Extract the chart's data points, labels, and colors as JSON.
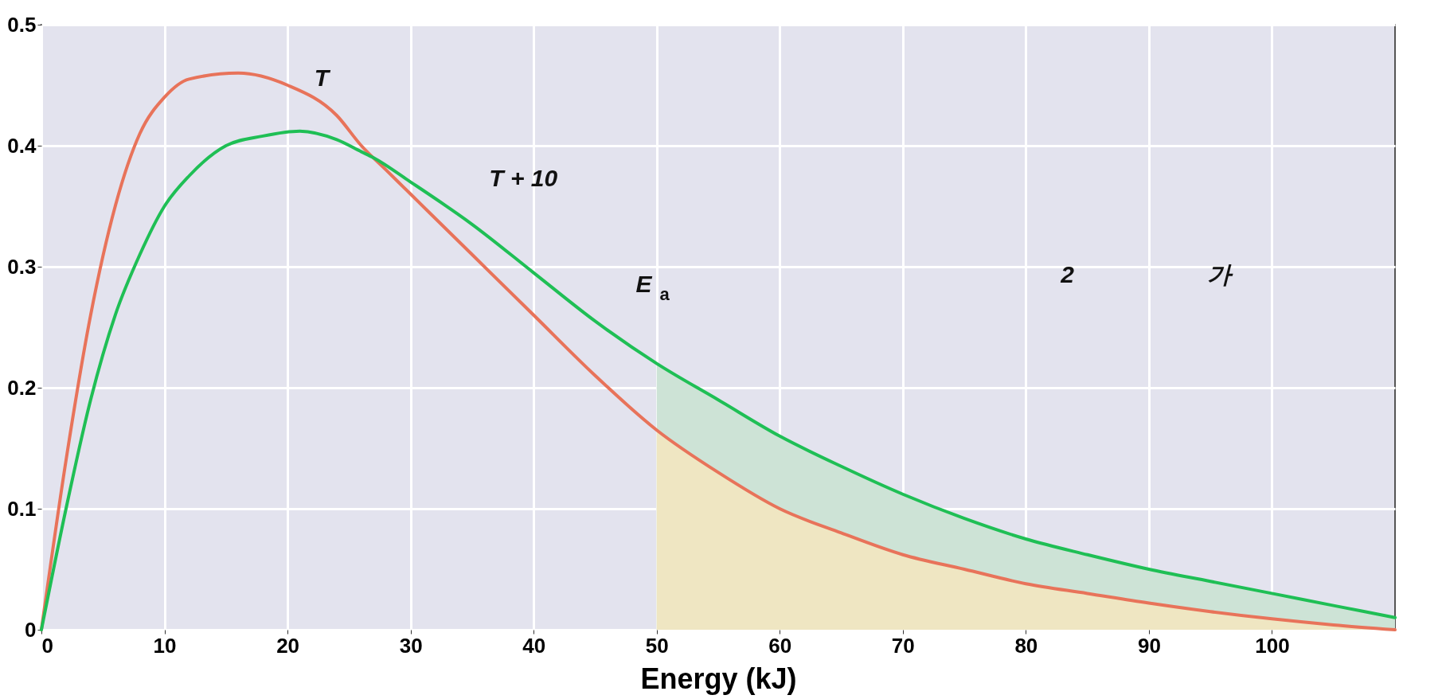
{
  "chart_data": {
    "type": "line",
    "xlabel": "Energy (kJ)",
    "xlim": [
      0,
      110
    ],
    "xticks": [
      0,
      10,
      20,
      30,
      40,
      50,
      60,
      70,
      80,
      90,
      100
    ],
    "ylim": [
      0,
      0.5
    ],
    "yticks": [
      0,
      0.1,
      0.2,
      0.3,
      0.4,
      0.5
    ],
    "grid": true,
    "marker": "none",
    "line_style": "solid",
    "series": [
      {
        "type": "area",
        "color": "#cde3d6",
        "x": [
          50,
          55,
          60,
          65,
          70,
          75,
          80,
          85,
          90,
          95,
          100,
          105,
          110
        ],
        "values": [
          0.22,
          0.19,
          0.16,
          0.135,
          0.112,
          0.092,
          0.075,
          0.062,
          0.05,
          0.04,
          0.03,
          0.02,
          0.01
        ]
      },
      {
        "type": "area",
        "color": "#efe6c2",
        "x": [
          50,
          55,
          60,
          65,
          70,
          75,
          80,
          85,
          90,
          95,
          100,
          105,
          110
        ],
        "values": [
          0.165,
          0.13,
          0.1,
          0.08,
          0.062,
          0.05,
          0.038,
          0.03,
          0.022,
          0.015,
          0.009,
          0.004,
          0
        ]
      },
      {
        "color": "#e8735a",
        "x": [
          0,
          2,
          4,
          6,
          8,
          10,
          12,
          16,
          20,
          24,
          26,
          28,
          30,
          35,
          40,
          45,
          50,
          55,
          60,
          65,
          70,
          75,
          80,
          85,
          90,
          95,
          100,
          105,
          110
        ],
        "values": [
          0,
          0.14,
          0.26,
          0.35,
          0.41,
          0.44,
          0.455,
          0.46,
          0.45,
          0.425,
          0.4,
          0.38,
          0.36,
          0.31,
          0.26,
          0.21,
          0.165,
          0.13,
          0.1,
          0.08,
          0.062,
          0.05,
          0.038,
          0.03,
          0.022,
          0.015,
          0.009,
          0.004,
          0
        ]
      },
      {
        "color": "#1fbf55",
        "x": [
          0,
          2,
          4,
          6,
          8,
          10,
          12,
          15,
          18,
          21,
          24,
          26,
          27,
          30,
          35,
          40,
          45,
          50,
          55,
          60,
          65,
          70,
          75,
          80,
          85,
          90,
          95,
          100,
          105,
          110
        ],
        "values": [
          0,
          0.1,
          0.19,
          0.26,
          0.31,
          0.35,
          0.375,
          0.4,
          0.408,
          0.412,
          0.405,
          0.395,
          0.39,
          0.37,
          0.335,
          0.295,
          0.255,
          0.22,
          0.19,
          0.16,
          0.135,
          0.112,
          0.092,
          0.075,
          0.062,
          0.05,
          0.04,
          0.03,
          0.02,
          0.01
        ]
      }
    ],
    "annotations": [
      "T",
      "T + 10",
      "E$_{a}$",
      "2",
      "가"
    ]
  }
}
